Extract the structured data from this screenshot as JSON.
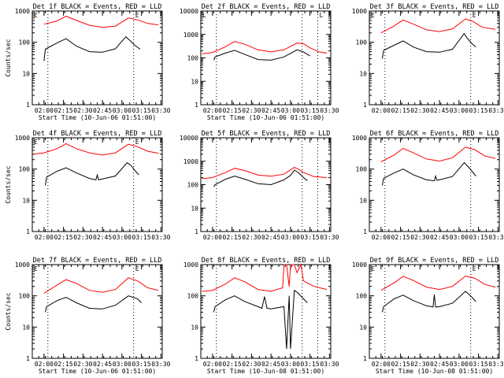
{
  "chart_data": [
    {
      "type": "line",
      "title": "Det 1f BLACK = Events, RED = LLD",
      "xlabel": "Start Time (10-Jun-06 01:51:00)",
      "ylabel": "Counts/sec",
      "yscale": "log",
      "ylim": [
        1,
        1000
      ],
      "xlim": [
        "01:51",
        "03:31"
      ],
      "xticks": [
        "02:00",
        "02:15",
        "02:30",
        "02:45",
        "03:00",
        "03:15",
        "03:30"
      ],
      "yticks": [
        "1",
        "10",
        "100",
        "1000"
      ],
      "markers": [
        "02:03",
        "03:09"
      ],
      "box_label": "E",
      "series": [
        {
          "color": "#ff0000",
          "x": [
            "02:00",
            "02:10",
            "02:17",
            "02:25",
            "02:35",
            "02:45",
            "02:55",
            "03:05",
            "03:12",
            "03:20",
            "03:28"
          ],
          "y": [
            380,
            480,
            680,
            500,
            350,
            300,
            330,
            600,
            520,
            400,
            360
          ]
        },
        {
          "color": "#000000",
          "x": [
            "02:00",
            "02:01",
            "02:10",
            "02:17",
            "02:25",
            "02:35",
            "02:45",
            "02:55",
            "03:03",
            "03:06",
            "03:10",
            "03:14"
          ],
          "y": [
            25,
            60,
            95,
            130,
            75,
            50,
            48,
            62,
            150,
            115,
            80,
            60
          ]
        }
      ]
    },
    {
      "type": "line",
      "title": "Det 2f BLACK = Events, RED = LLD",
      "xlabel": "Start Time (10-Jun-06 01:51:00)",
      "ylabel": "",
      "yscale": "log",
      "ylim": [
        1,
        10000
      ],
      "xlim": [
        "01:51",
        "03:31"
      ],
      "xticks": [
        "02:00",
        "02:15",
        "02:30",
        "02:45",
        "03:00",
        "03:15",
        "03:30"
      ],
      "yticks": [
        "1",
        "10",
        "100",
        "1000",
        "10000"
      ],
      "markers": [
        "02:03",
        "03:09",
        "03:21"
      ],
      "box_label": "L",
      "series": [
        {
          "color": "#ff0000",
          "x": [
            "01:52",
            "02:00",
            "02:10",
            "02:17",
            "02:25",
            "02:35",
            "02:45",
            "02:55",
            "03:05",
            "03:10",
            "03:15",
            "03:22",
            "03:28"
          ],
          "y": [
            150,
            170,
            300,
            500,
            380,
            220,
            180,
            220,
            430,
            400,
            270,
            180,
            160
          ]
        },
        {
          "color": "#000000",
          "x": [
            "02:01",
            "02:02",
            "02:10",
            "02:17",
            "02:25",
            "02:35",
            "02:45",
            "02:55",
            "03:05",
            "03:10",
            "03:15"
          ],
          "y": [
            80,
            110,
            160,
            210,
            140,
            85,
            80,
            110,
            220,
            180,
            120
          ]
        }
      ]
    },
    {
      "type": "line",
      "title": "Det 3f BLACK = Events, RED = LLD",
      "xlabel": "",
      "ylabel": "",
      "yscale": "log",
      "ylim": [
        1,
        1000
      ],
      "xlim": [
        "01:51",
        "03:31"
      ],
      "xticks": [
        "02:00",
        "02:15",
        "02:30",
        "02:45",
        "03:00",
        "03:15",
        "03:30"
      ],
      "yticks": [
        "1",
        "10",
        "100",
        "1000"
      ],
      "markers": [
        "02:03",
        "03:09"
      ],
      "box_label": "E",
      "series": [
        {
          "color": "#ff0000",
          "x": [
            "02:00",
            "02:10",
            "02:17",
            "02:25",
            "02:35",
            "02:45",
            "02:55",
            "03:05",
            "03:10",
            "03:18",
            "03:28"
          ],
          "y": [
            200,
            330,
            520,
            380,
            250,
            220,
            270,
            560,
            480,
            300,
            260
          ]
        },
        {
          "color": "#000000",
          "x": [
            "02:01",
            "02:02",
            "02:10",
            "02:17",
            "02:25",
            "02:35",
            "02:45",
            "02:55",
            "03:04",
            "03:06",
            "03:10",
            "03:13"
          ],
          "y": [
            30,
            55,
            80,
            110,
            70,
            50,
            48,
            60,
            190,
            140,
            90,
            70
          ]
        }
      ]
    },
    {
      "type": "line",
      "title": "Det 4f BLACK = Events, RED = LLD",
      "xlabel": "",
      "ylabel": "Counts/sec",
      "yscale": "log",
      "ylim": [
        1,
        1000
      ],
      "xlim": [
        "01:51",
        "03:31"
      ],
      "xticks": [
        "02:00",
        "02:15",
        "02:30",
        "02:45",
        "03:00",
        "03:15",
        "03:30"
      ],
      "yticks": [
        "1",
        "10",
        "100",
        "1000"
      ],
      "markers": [
        "02:03",
        "03:09"
      ],
      "box_label": "E",
      "series": [
        {
          "color": "#ff0000",
          "x": [
            "01:52",
            "02:00",
            "02:10",
            "02:17",
            "02:25",
            "02:35",
            "02:45",
            "02:55",
            "03:05",
            "03:12",
            "03:20",
            "03:28"
          ],
          "y": [
            300,
            330,
            450,
            650,
            450,
            330,
            280,
            330,
            620,
            520,
            370,
            320
          ]
        },
        {
          "color": "#000000",
          "x": [
            "02:01",
            "02:02",
            "02:10",
            "02:17",
            "02:25",
            "02:35",
            "02:40",
            "02:41",
            "02:42",
            "02:45",
            "02:55",
            "03:04",
            "03:07",
            "03:10",
            "03:13"
          ],
          "y": [
            30,
            55,
            85,
            110,
            75,
            50,
            45,
            65,
            45,
            48,
            60,
            160,
            130,
            90,
            65
          ]
        }
      ]
    },
    {
      "type": "line",
      "title": "Det 5f BLACK = Events, RED = LLD",
      "xlabel": "",
      "ylabel": "",
      "yscale": "log",
      "ylim": [
        1,
        10000
      ],
      "xlim": [
        "01:51",
        "03:31"
      ],
      "xticks": [
        "02:00",
        "02:15",
        "02:30",
        "02:45",
        "03:00",
        "03:15",
        "03:30"
      ],
      "yticks": [
        "1",
        "10",
        "100",
        "1000",
        "10000"
      ],
      "markers": [
        "02:03",
        "03:09",
        "03:21"
      ],
      "box_label": "",
      "series": [
        {
          "color": "#ff0000",
          "x": [
            "01:52",
            "02:00",
            "02:10",
            "02:17",
            "02:25",
            "02:35",
            "02:45",
            "02:55",
            "03:03",
            "03:06",
            "03:10",
            "03:18",
            "03:28"
          ],
          "y": [
            180,
            200,
            330,
            500,
            400,
            260,
            230,
            280,
            550,
            460,
            330,
            220,
            200
          ]
        },
        {
          "color": "#000000",
          "x": [
            "02:01",
            "02:02",
            "02:10",
            "02:17",
            "02:25",
            "02:35",
            "02:45",
            "02:55",
            "03:00",
            "03:03",
            "03:06",
            "03:10",
            "03:13"
          ],
          "y": [
            80,
            100,
            170,
            230,
            170,
            110,
            100,
            160,
            250,
            420,
            330,
            200,
            150
          ]
        }
      ]
    },
    {
      "type": "line",
      "title": "Det 6f BLACK = Events, RED = LLD",
      "xlabel": "",
      "ylabel": "",
      "yscale": "log",
      "ylim": [
        1,
        1000
      ],
      "xlim": [
        "01:51",
        "03:31"
      ],
      "xticks": [
        "02:00",
        "02:15",
        "02:30",
        "02:45",
        "03:00",
        "03:15",
        "03:30"
      ],
      "yticks": [
        "1",
        "10",
        "100",
        "1000"
      ],
      "markers": [
        "02:03",
        "03:09"
      ],
      "box_label": "",
      "series": [
        {
          "color": "#ff0000",
          "x": [
            "02:00",
            "02:10",
            "02:17",
            "02:25",
            "02:35",
            "02:45",
            "02:55",
            "03:05",
            "03:12",
            "03:20",
            "03:28"
          ],
          "y": [
            170,
            280,
            460,
            330,
            210,
            180,
            230,
            500,
            420,
            260,
            220
          ]
        },
        {
          "color": "#000000",
          "x": [
            "02:01",
            "02:02",
            "02:10",
            "02:17",
            "02:25",
            "02:35",
            "02:41",
            "02:42",
            "02:43",
            "02:45",
            "02:55",
            "03:04",
            "03:07",
            "03:10",
            "03:13"
          ],
          "y": [
            30,
            50,
            75,
            100,
            65,
            45,
            42,
            60,
            44,
            45,
            58,
            160,
            120,
            85,
            60
          ]
        }
      ]
    },
    {
      "type": "line",
      "title": "Det 7f BLACK = Events, RED = LLD",
      "xlabel": "Start Time (10-Jun-06 01:51:00)",
      "ylabel": "Counts/sec",
      "yscale": "log",
      "ylim": [
        1,
        1000
      ],
      "xlim": [
        "01:51",
        "03:31"
      ],
      "xticks": [
        "02:00",
        "02:15",
        "02:30",
        "02:45",
        "03:00",
        "03:15",
        "03:30"
      ],
      "yticks": [
        "1",
        "10",
        "100",
        "1000"
      ],
      "markers": [
        "02:03",
        "03:09"
      ],
      "box_label": "E",
      "series": [
        {
          "color": "#ff0000",
          "x": [
            "02:00",
            "02:10",
            "02:17",
            "02:25",
            "02:35",
            "02:45",
            "02:55",
            "03:05",
            "03:12",
            "03:20",
            "03:28"
          ],
          "y": [
            120,
            220,
            330,
            250,
            150,
            130,
            160,
            380,
            300,
            180,
            150
          ]
        },
        {
          "color": "#000000",
          "x": [
            "02:01",
            "02:02",
            "02:10",
            "02:17",
            "02:25",
            "02:35",
            "02:45",
            "02:55",
            "03:05",
            "03:12",
            "03:15"
          ],
          "y": [
            30,
            45,
            70,
            90,
            60,
            40,
            38,
            50,
            100,
            80,
            60
          ]
        }
      ]
    },
    {
      "type": "line",
      "title": "Det 8f BLACK = Events, RED = LLD",
      "xlabel": "Start Time (10-Jun-08 01:51:00)",
      "ylabel": "",
      "yscale": "log",
      "ylim": [
        1,
        1000
      ],
      "xlim": [
        "01:51",
        "03:31"
      ],
      "xticks": [
        "02:00",
        "02:15",
        "02:30",
        "02:45",
        "03:00",
        "03:15",
        "03:30"
      ],
      "yticks": [
        "1",
        "10",
        "100",
        "1000"
      ],
      "markers": [
        "02:03",
        "03:09",
        "03:21"
      ],
      "box_label": "",
      "series": [
        {
          "color": "#ff0000",
          "x": [
            "01:52",
            "02:00",
            "02:10",
            "02:17",
            "02:25",
            "02:35",
            "02:45",
            "02:54",
            "02:55",
            "02:57",
            "02:59",
            "03:00",
            "03:03",
            "03:05",
            "03:08",
            "03:10",
            "03:18",
            "03:28"
          ],
          "y": [
            140,
            150,
            240,
            380,
            280,
            160,
            140,
            180,
            1000,
            1000,
            200,
            1000,
            1000,
            550,
            1000,
            300,
            200,
            160
          ]
        },
        {
          "color": "#000000",
          "x": [
            "02:01",
            "02:02",
            "02:10",
            "02:17",
            "02:25",
            "02:35",
            "02:38",
            "02:40",
            "02:42",
            "02:45",
            "02:55",
            "02:57",
            "02:59",
            "03:00",
            "03:03",
            "03:06",
            "03:10",
            "03:13"
          ],
          "y": [
            30,
            45,
            75,
            100,
            65,
            45,
            40,
            95,
            40,
            38,
            45,
            2,
            100,
            2,
            150,
            120,
            80,
            60
          ]
        }
      ]
    },
    {
      "type": "line",
      "title": "Det 9f BLACK = Events, RED = LLD",
      "xlabel": "Start Time (10-Jun-08 01:51:00)",
      "ylabel": "",
      "yscale": "log",
      "ylim": [
        1,
        1000
      ],
      "xlim": [
        "01:51",
        "03:31"
      ],
      "xticks": [
        "02:00",
        "02:15",
        "02:30",
        "02:45",
        "03:00",
        "03:15",
        "03:30"
      ],
      "yticks": [
        "1",
        "10",
        "100",
        "1000"
      ],
      "markers": [
        "02:03",
        "03:09"
      ],
      "box_label": "E",
      "series": [
        {
          "color": "#ff0000",
          "x": [
            "02:00",
            "02:10",
            "02:17",
            "02:25",
            "02:35",
            "02:45",
            "02:55",
            "03:05",
            "03:12",
            "03:20",
            "03:28"
          ],
          "y": [
            150,
            260,
            420,
            310,
            190,
            160,
            200,
            430,
            370,
            230,
            190
          ]
        },
        {
          "color": "#000000",
          "x": [
            "02:01",
            "02:02",
            "02:10",
            "02:17",
            "02:25",
            "02:35",
            "02:40",
            "02:41",
            "02:42",
            "02:45",
            "02:55",
            "03:05",
            "03:10",
            "03:13"
          ],
          "y": [
            30,
            45,
            80,
            105,
            70,
            48,
            44,
            110,
            44,
            45,
            58,
            140,
            90,
            65
          ]
        }
      ]
    }
  ]
}
